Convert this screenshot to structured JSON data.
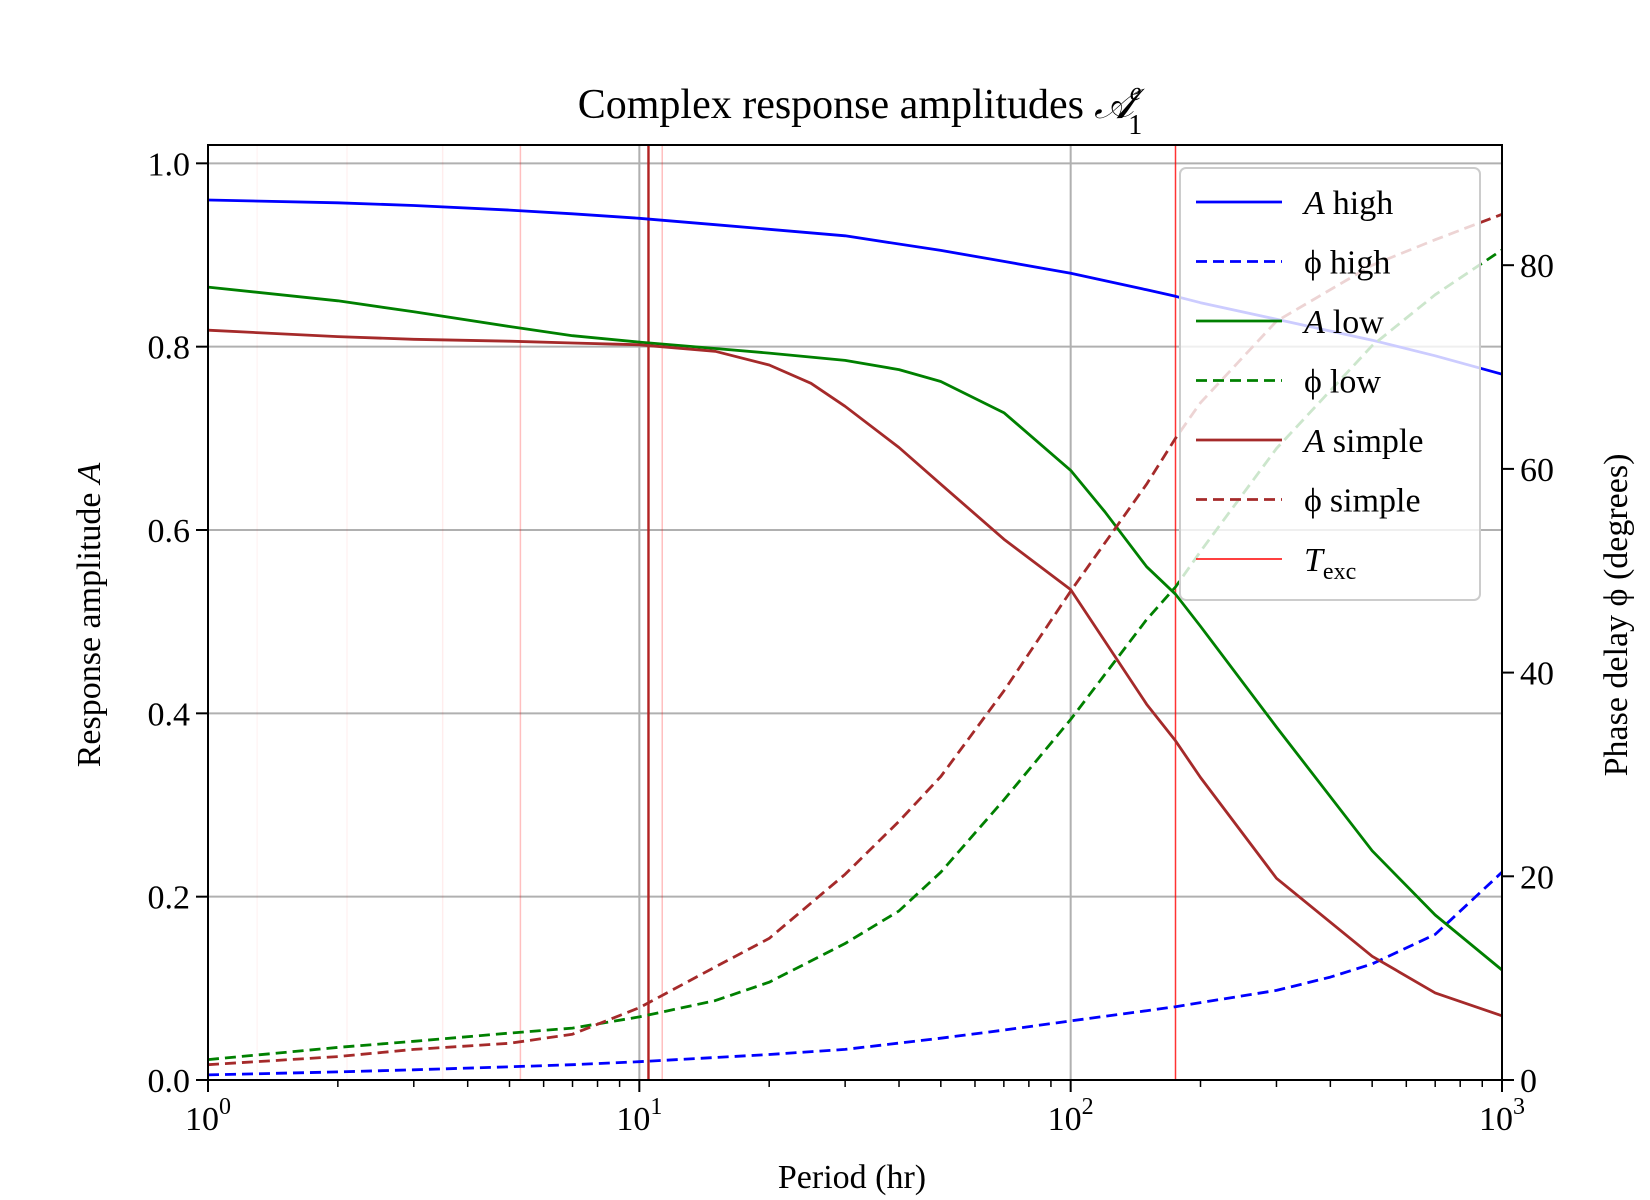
{
  "chart_data": {
    "type": "line",
    "title": "Complex response amplitudes",
    "title_math": "𝒜",
    "title_sup": "e",
    "title_sub": "1",
    "xlabel": "Period (hr)",
    "ylabel_left": "Response amplitude",
    "ylabel_left_var": "A",
    "ylabel_right": "Phase delay ϕ (degrees)",
    "x_scale": "log",
    "xlim": [
      1,
      1000
    ],
    "ylim_left": [
      0,
      1.02
    ],
    "ylim_right": [
      0,
      91.8
    ],
    "x_ticks": [
      {
        "value": 1,
        "base": "10",
        "exp": "0"
      },
      {
        "value": 10,
        "base": "10",
        "exp": "1"
      },
      {
        "value": 100,
        "base": "10",
        "exp": "2"
      },
      {
        "value": 1000,
        "base": "10",
        "exp": "3"
      }
    ],
    "y_left_ticks": [
      {
        "value": 0.0,
        "label": "0.0"
      },
      {
        "value": 0.2,
        "label": "0.2"
      },
      {
        "value": 0.4,
        "label": "0.4"
      },
      {
        "value": 0.6,
        "label": "0.6"
      },
      {
        "value": 0.8,
        "label": "0.8"
      },
      {
        "value": 1.0,
        "label": "1.0"
      }
    ],
    "y_right_ticks": [
      {
        "value": 0,
        "label": "0"
      },
      {
        "value": 20,
        "label": "20"
      },
      {
        "value": 40,
        "label": "40"
      },
      {
        "value": 60,
        "label": "60"
      },
      {
        "value": 80,
        "label": "80"
      }
    ],
    "grid": true,
    "legend_position": "top-right",
    "series": [
      {
        "id": "A_high",
        "name_var": "A",
        "name": "high",
        "axis": "left",
        "color": "#0000ff",
        "dash": "solid",
        "x": [
          1,
          2,
          3,
          5,
          7,
          10,
          15,
          20,
          30,
          50,
          70,
          100,
          150,
          175,
          200,
          300,
          500,
          700,
          1000
        ],
        "y": [
          0.96,
          0.957,
          0.954,
          0.949,
          0.945,
          0.94,
          0.933,
          0.928,
          0.921,
          0.905,
          0.893,
          0.88,
          0.862,
          0.855,
          0.848,
          0.83,
          0.807,
          0.79,
          0.77
        ]
      },
      {
        "id": "phi_high",
        "name_var": "ϕ",
        "name": "high",
        "axis": "right",
        "color": "#0000ff",
        "dash": "dashed",
        "x": [
          1,
          2,
          3,
          5,
          7,
          10,
          20,
          30,
          50,
          70,
          100,
          150,
          175,
          200,
          300,
          400,
          500,
          700,
          1000
        ],
        "y": [
          0.5,
          0.8,
          1.0,
          1.3,
          1.5,
          1.8,
          2.5,
          3.0,
          4.1,
          4.9,
          5.8,
          6.8,
          7.2,
          7.6,
          8.8,
          10.1,
          11.4,
          14.3,
          20.4
        ]
      },
      {
        "id": "A_low",
        "name_var": "A",
        "name": "low",
        "axis": "left",
        "color": "#008000",
        "dash": "solid",
        "x": [
          1,
          2,
          3,
          5,
          7,
          10,
          15,
          20,
          30,
          40,
          50,
          70,
          100,
          120,
          150,
          175,
          200,
          300,
          500,
          700,
          1000
        ],
        "y": [
          0.865,
          0.85,
          0.838,
          0.822,
          0.812,
          0.805,
          0.798,
          0.793,
          0.785,
          0.775,
          0.762,
          0.728,
          0.665,
          0.62,
          0.56,
          0.53,
          0.495,
          0.385,
          0.25,
          0.18,
          0.12
        ]
      },
      {
        "id": "phi_low",
        "name_var": "ϕ",
        "name": "low",
        "axis": "right",
        "color": "#008000",
        "dash": "dashed",
        "x": [
          1,
          2,
          3,
          5,
          7,
          10,
          15,
          20,
          30,
          40,
          50,
          70,
          100,
          150,
          175,
          200,
          300,
          500,
          700,
          1000
        ],
        "y": [
          2.0,
          3.2,
          3.8,
          4.6,
          5.1,
          6.2,
          7.8,
          9.6,
          13.4,
          16.6,
          20.4,
          27.5,
          35.4,
          45.2,
          48.4,
          51.9,
          62.0,
          72.1,
          77.1,
          81.5
        ]
      },
      {
        "id": "A_simple",
        "name_var": "A",
        "name": "simple",
        "axis": "left",
        "color": "#a52a2a",
        "dash": "solid",
        "x": [
          1,
          2,
          3,
          5,
          7,
          10,
          15,
          20,
          25,
          30,
          40,
          50,
          70,
          100,
          150,
          175,
          200,
          300,
          500,
          700,
          1000
        ],
        "y": [
          0.818,
          0.811,
          0.808,
          0.806,
          0.804,
          0.802,
          0.795,
          0.78,
          0.76,
          0.735,
          0.69,
          0.65,
          0.59,
          0.535,
          0.41,
          0.37,
          0.33,
          0.22,
          0.135,
          0.095,
          0.07
        ]
      },
      {
        "id": "phi_simple",
        "name_var": "ϕ",
        "name": "simple",
        "axis": "right",
        "color": "#a52a2a",
        "dash": "dashed",
        "x": [
          1,
          2,
          3,
          5,
          7,
          10,
          15,
          20,
          30,
          40,
          50,
          70,
          100,
          150,
          175,
          200,
          300,
          500,
          700,
          1000
        ],
        "y": [
          1.5,
          2.3,
          3.0,
          3.6,
          4.5,
          7.1,
          11.1,
          13.9,
          20.2,
          25.4,
          29.8,
          38.2,
          48.0,
          58.5,
          63.0,
          66.5,
          74.5,
          80.0,
          82.5,
          85.0
        ]
      }
    ],
    "texc_lines": [
      {
        "x": 10.5,
        "color": "#b22222",
        "alpha": 1.0,
        "width": 2.4
      },
      {
        "x": 175,
        "color": "#ff0000",
        "alpha": 0.8,
        "width": 1.5
      },
      {
        "x": 5.3,
        "color": "#ff0000",
        "alpha": 0.25,
        "width": 1.5
      },
      {
        "x": 11.3,
        "color": "#ff0000",
        "alpha": 0.25,
        "width": 1.5
      },
      {
        "x": 3.5,
        "color": "#ff0000",
        "alpha": 0.07,
        "width": 1.5
      },
      {
        "x": 2.1,
        "color": "#ff0000",
        "alpha": 0.05,
        "width": 1.5
      },
      {
        "x": 1.3,
        "color": "#ff0000",
        "alpha": 0.04,
        "width": 1.5
      }
    ],
    "legend": [
      {
        "var": "A",
        "label": "high",
        "color": "#0000ff",
        "dash": "solid"
      },
      {
        "var": "ϕ",
        "label": "high",
        "color": "#0000ff",
        "dash": "dashed"
      },
      {
        "var": "A",
        "label": "low",
        "color": "#008000",
        "dash": "solid"
      },
      {
        "var": "ϕ",
        "label": "low",
        "color": "#008000",
        "dash": "dashed"
      },
      {
        "var": "A",
        "label": "simple",
        "color": "#a52a2a",
        "dash": "solid"
      },
      {
        "var": "ϕ",
        "label": "simple",
        "color": "#a52a2a",
        "dash": "dashed"
      },
      {
        "var": "T",
        "label": "exc",
        "color": "#ff0000",
        "dash": "thin"
      }
    ]
  }
}
